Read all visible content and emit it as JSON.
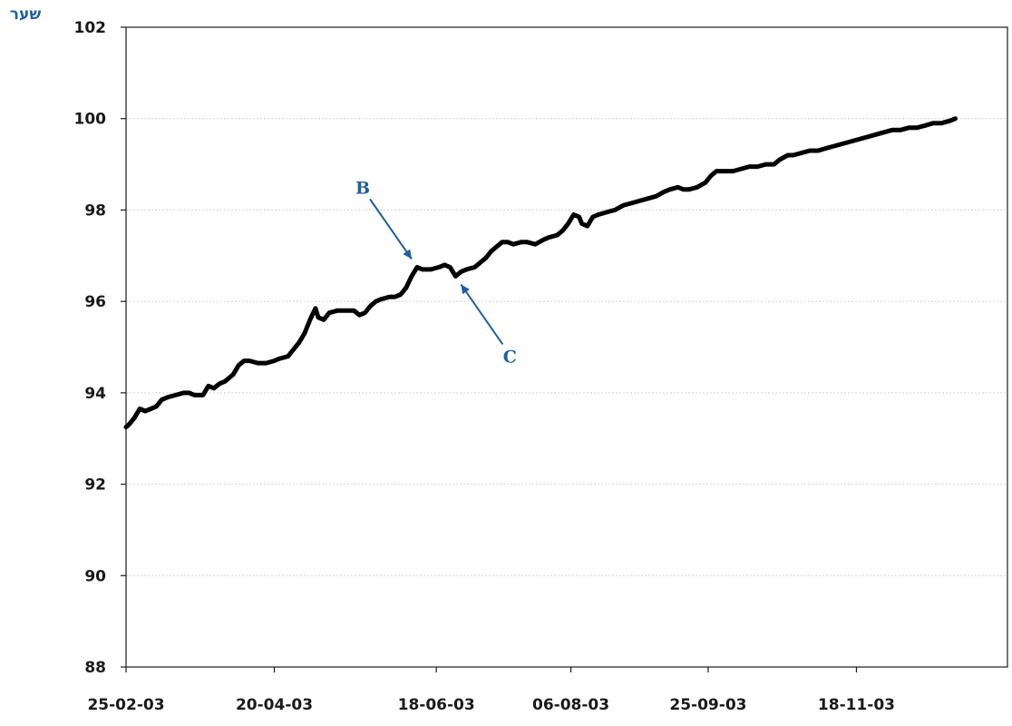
{
  "chart_data": {
    "type": "line",
    "title": "",
    "xlabel": "",
    "ylabel": "שער",
    "ylim": [
      88,
      102
    ],
    "yticks": [
      88,
      90,
      92,
      94,
      96,
      98,
      100,
      102
    ],
    "x_start": "25-02-03",
    "x_end": "12-01-04",
    "xticks": [
      "25-02-03",
      "20-04-03",
      "18-06-03",
      "06-08-03",
      "25-09-03",
      "18-11-03"
    ],
    "grid": "horizontal",
    "series": [
      {
        "color": "#000000",
        "points": [
          [
            "25-02-03",
            93.25
          ],
          [
            "26-02-03",
            93.3
          ],
          [
            "28-02-03",
            93.45
          ],
          [
            "02-03-03",
            93.65
          ],
          [
            "04-03-03",
            93.6
          ],
          [
            "06-03-03",
            93.65
          ],
          [
            "08-03-03",
            93.7
          ],
          [
            "10-03-03",
            93.85
          ],
          [
            "12-03-03",
            93.9
          ],
          [
            "15-03-03",
            93.95
          ],
          [
            "18-03-03",
            94.0
          ],
          [
            "20-03-03",
            94.0
          ],
          [
            "22-03-03",
            93.95
          ],
          [
            "25-03-03",
            93.95
          ],
          [
            "27-03-03",
            94.15
          ],
          [
            "29-03-03",
            94.1
          ],
          [
            "31-03-03",
            94.2
          ],
          [
            "02-04-03",
            94.25
          ],
          [
            "05-04-03",
            94.4
          ],
          [
            "07-04-03",
            94.6
          ],
          [
            "09-04-03",
            94.7
          ],
          [
            "11-04-03",
            94.7
          ],
          [
            "14-04-03",
            94.65
          ],
          [
            "17-04-03",
            94.65
          ],
          [
            "20-04-03",
            94.7
          ],
          [
            "22-04-03",
            94.75
          ],
          [
            "25-04-03",
            94.8
          ],
          [
            "27-04-03",
            94.95
          ],
          [
            "29-04-03",
            95.1
          ],
          [
            "01-05-03",
            95.3
          ],
          [
            "03-05-03",
            95.6
          ],
          [
            "05-05-03",
            95.85
          ],
          [
            "06-05-03",
            95.65
          ],
          [
            "08-05-03",
            95.6
          ],
          [
            "10-05-03",
            95.75
          ],
          [
            "13-05-03",
            95.8
          ],
          [
            "16-05-03",
            95.8
          ],
          [
            "19-05-03",
            95.8
          ],
          [
            "21-05-03",
            95.7
          ],
          [
            "23-05-03",
            95.75
          ],
          [
            "25-05-03",
            95.9
          ],
          [
            "27-05-03",
            96.0
          ],
          [
            "29-05-03",
            96.05
          ],
          [
            "01-06-03",
            96.1
          ],
          [
            "03-06-03",
            96.1
          ],
          [
            "05-06-03",
            96.15
          ],
          [
            "07-06-03",
            96.3
          ],
          [
            "09-06-03",
            96.55
          ],
          [
            "11-06-03",
            96.75
          ],
          [
            "13-06-03",
            96.7
          ],
          [
            "16-06-03",
            96.7
          ],
          [
            "19-06-03",
            96.75
          ],
          [
            "21-06-03",
            96.8
          ],
          [
            "23-06-03",
            96.75
          ],
          [
            "25-06-03",
            96.55
          ],
          [
            "27-06-03",
            96.65
          ],
          [
            "29-06-03",
            96.7
          ],
          [
            "02-07-03",
            96.75
          ],
          [
            "04-07-03",
            96.85
          ],
          [
            "06-07-03",
            96.95
          ],
          [
            "08-07-03",
            97.1
          ],
          [
            "10-07-03",
            97.2
          ],
          [
            "12-07-03",
            97.3
          ],
          [
            "14-07-03",
            97.3
          ],
          [
            "16-07-03",
            97.25
          ],
          [
            "19-07-03",
            97.3
          ],
          [
            "21-07-03",
            97.3
          ],
          [
            "24-07-03",
            97.25
          ],
          [
            "27-07-03",
            97.35
          ],
          [
            "29-07-03",
            97.4
          ],
          [
            "01-08-03",
            97.45
          ],
          [
            "03-08-03",
            97.55
          ],
          [
            "05-08-03",
            97.7
          ],
          [
            "07-08-03",
            97.9
          ],
          [
            "09-08-03",
            97.85
          ],
          [
            "10-08-03",
            97.7
          ],
          [
            "12-08-03",
            97.65
          ],
          [
            "14-08-03",
            97.85
          ],
          [
            "16-08-03",
            97.9
          ],
          [
            "19-08-03",
            97.95
          ],
          [
            "22-08-03",
            98.0
          ],
          [
            "25-08-03",
            98.1
          ],
          [
            "28-08-03",
            98.15
          ],
          [
            "31-08-03",
            98.2
          ],
          [
            "03-09-03",
            98.25
          ],
          [
            "06-09-03",
            98.3
          ],
          [
            "09-09-03",
            98.4
          ],
          [
            "11-09-03",
            98.45
          ],
          [
            "14-09-03",
            98.5
          ],
          [
            "16-09-03",
            98.45
          ],
          [
            "18-09-03",
            98.45
          ],
          [
            "21-09-03",
            98.5
          ],
          [
            "24-09-03",
            98.6
          ],
          [
            "26-09-03",
            98.75
          ],
          [
            "28-09-03",
            98.85
          ],
          [
            "01-10-03",
            98.85
          ],
          [
            "04-10-03",
            98.85
          ],
          [
            "07-10-03",
            98.9
          ],
          [
            "10-10-03",
            98.95
          ],
          [
            "13-10-03",
            98.95
          ],
          [
            "16-10-03",
            99.0
          ],
          [
            "19-10-03",
            99.0
          ],
          [
            "21-10-03",
            99.1
          ],
          [
            "24-10-03",
            99.2
          ],
          [
            "26-10-03",
            99.2
          ],
          [
            "29-10-03",
            99.25
          ],
          [
            "01-11-03",
            99.3
          ],
          [
            "04-11-03",
            99.3
          ],
          [
            "07-11-03",
            99.35
          ],
          [
            "10-11-03",
            99.4
          ],
          [
            "13-11-03",
            99.45
          ],
          [
            "16-11-03",
            99.5
          ],
          [
            "19-11-03",
            99.55
          ],
          [
            "22-11-03",
            99.6
          ],
          [
            "25-11-03",
            99.65
          ],
          [
            "28-11-03",
            99.7
          ],
          [
            "01-12-03",
            99.75
          ],
          [
            "04-12-03",
            99.75
          ],
          [
            "07-12-03",
            99.8
          ],
          [
            "10-12-03",
            99.8
          ],
          [
            "13-12-03",
            99.85
          ],
          [
            "16-12-03",
            99.9
          ],
          [
            "19-12-03",
            99.9
          ],
          [
            "22-12-03",
            99.95
          ],
          [
            "24-12-03",
            100.0
          ]
        ]
      }
    ],
    "annotations": [
      {
        "label": "B",
        "point": [
          "11-06-03",
          96.75
        ]
      },
      {
        "label": "C",
        "point": [
          "25-06-03",
          96.55
        ]
      }
    ]
  }
}
